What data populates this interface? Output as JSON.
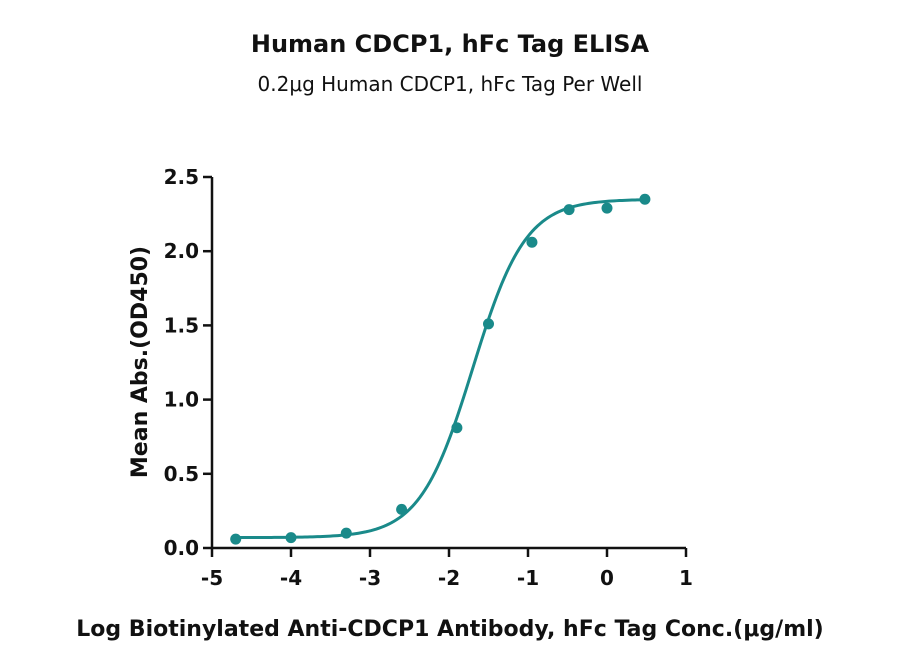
{
  "chart_data": {
    "type": "scatter",
    "title": "Human CDCP1, hFc Tag ELISA",
    "subtitle": "0.2μg Human CDCP1, hFc Tag Per Well",
    "xlabel": "Log Biotinylated Anti-CDCP1 Antibody, hFc Tag Conc.(μg/ml)",
    "ylabel": "Mean Abs.(OD450)",
    "xlim": [
      -5,
      1
    ],
    "ylim": [
      0,
      2.5
    ],
    "x_ticks": [
      -5,
      -4,
      -3,
      -2,
      -1,
      0,
      1
    ],
    "x_tick_labels": [
      "-5",
      "-4",
      "-3",
      "-2",
      "-1",
      "0",
      "1"
    ],
    "y_ticks": [
      0,
      0.5,
      1.0,
      1.5,
      2.0,
      2.5
    ],
    "y_tick_labels": [
      "0.0",
      "0.5",
      "1.0",
      "1.5",
      "2.0",
      "2.5"
    ],
    "grid": false,
    "series": [
      {
        "color": "#1a8a8a",
        "x": [
          -4.7,
          -4.0,
          -3.3,
          -2.6,
          -1.9,
          -1.5,
          -0.95,
          -0.48,
          0.0,
          0.48
        ],
        "y": [
          0.06,
          0.07,
          0.1,
          0.26,
          0.81,
          1.51,
          2.06,
          2.28,
          2.29,
          2.35
        ],
        "fit": "four-parameter logistic",
        "fit_params": {
          "bottom": 0.07,
          "top": 2.35,
          "log_ec50": -1.7,
          "hill": 1.3
        }
      }
    ]
  }
}
